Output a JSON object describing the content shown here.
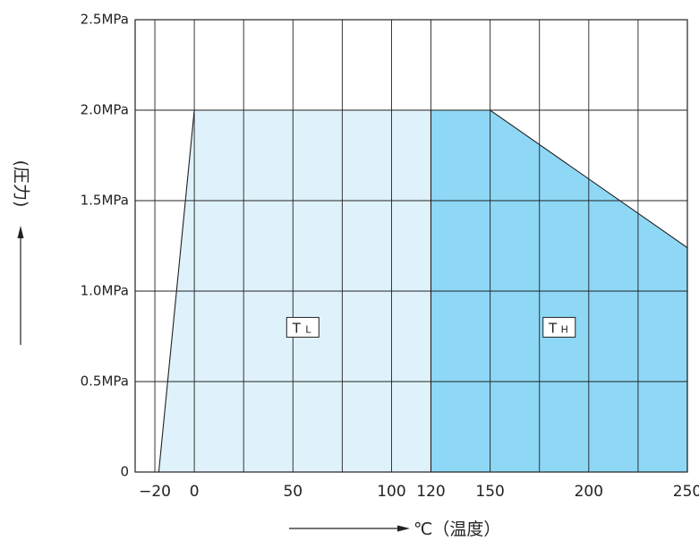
{
  "chart_data": {
    "type": "area",
    "xlabel": "℃（温度）",
    "ylabel": "(圧力)",
    "xlim": [
      -30,
      250
    ],
    "ylim": [
      0,
      2.5
    ],
    "x_ticks": [
      {
        "value": -20,
        "label": "−20"
      },
      {
        "value": 0,
        "label": "0"
      },
      {
        "value": 50,
        "label": "50"
      },
      {
        "value": 100,
        "label": "100"
      },
      {
        "value": 120,
        "label": "120"
      },
      {
        "value": 150,
        "label": "150"
      },
      {
        "value": 200,
        "label": "200"
      },
      {
        "value": 250,
        "label": "250"
      }
    ],
    "x_grid": [
      -20,
      0,
      25,
      50,
      75,
      100,
      120,
      150,
      175,
      200,
      225,
      250
    ],
    "y_ticks": [
      {
        "value": 0,
        "label": "0"
      },
      {
        "value": 0.5,
        "label": "0.5MPa"
      },
      {
        "value": 1.0,
        "label": "1.0MPa"
      },
      {
        "value": 1.5,
        "label": "1.5MPa"
      },
      {
        "value": 2.0,
        "label": "2.0MPa"
      },
      {
        "value": 2.5,
        "label": "2.5MPa"
      }
    ],
    "grid": true,
    "regions": [
      {
        "name": "TL",
        "label_main": "T",
        "label_sub": "L",
        "color": "#dff2fb",
        "label_at": [
          55,
          0.8
        ],
        "points": [
          [
            -18,
            0
          ],
          [
            0,
            2.0
          ],
          [
            120,
            2.0
          ],
          [
            120,
            0
          ]
        ]
      },
      {
        "name": "TH",
        "label_main": "T",
        "label_sub": "H",
        "color": "#8ed8f6",
        "label_at": [
          185,
          0.8
        ],
        "points": [
          [
            120,
            0
          ],
          [
            120,
            2.0
          ],
          [
            150,
            2.0
          ],
          [
            250,
            1.24
          ],
          [
            250,
            0
          ]
        ]
      }
    ]
  }
}
